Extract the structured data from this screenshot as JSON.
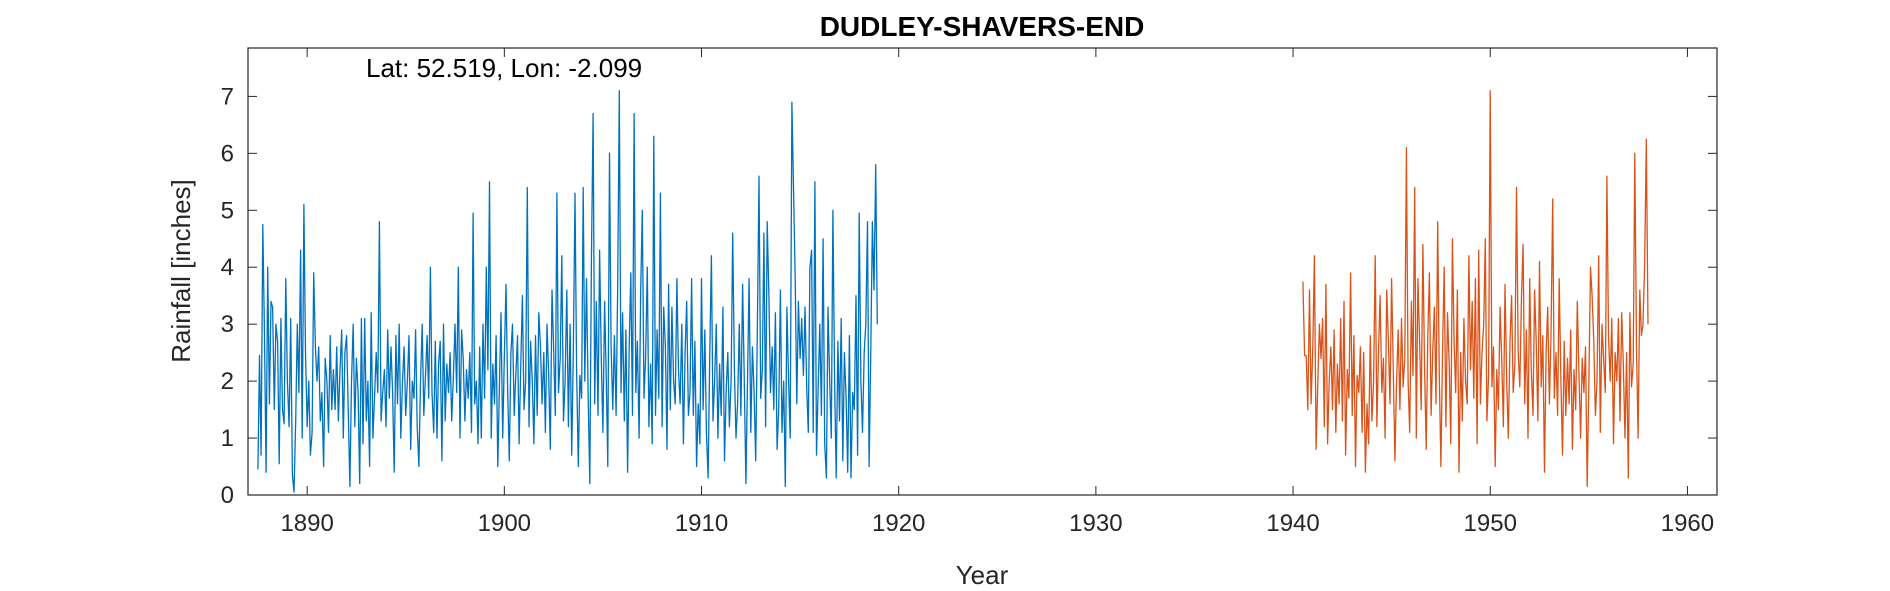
{
  "chart_data": {
    "type": "line",
    "title": "DUDLEY-SHAVERS-END",
    "annotation": "Lat: 52.519, Lon: -2.099",
    "xlabel": "Year",
    "ylabel": "Rainfall [inches]",
    "xlim": [
      1887,
      1961.5
    ],
    "ylim": [
      0,
      7.85
    ],
    "xticks": [
      1890,
      1900,
      1910,
      1920,
      1930,
      1940,
      1950,
      1960
    ],
    "yticks": [
      0,
      1,
      2,
      3,
      4,
      5,
      6,
      7
    ],
    "grid": false,
    "legend": "none",
    "series": [
      {
        "color": "#0072BD",
        "x_start": 1887.5,
        "step": 0.08333,
        "values": [
          0.45,
          2.45,
          0.7,
          4.75,
          2.9,
          0.4,
          4.0,
          1.6,
          3.4,
          3.3,
          1.5,
          3.0,
          2.7,
          0.55,
          3.1,
          1.5,
          1.25,
          3.8,
          2.0,
          1.2,
          3.1,
          0.35,
          0.05,
          1.3,
          3.0,
          1.8,
          4.3,
          1.0,
          5.1,
          2.5,
          1.2,
          2.0,
          0.7,
          1.1,
          3.9,
          2.6,
          2.0,
          2.6,
          1.3,
          1.8,
          0.5,
          2.4,
          2.0,
          1.1,
          2.8,
          1.5,
          2.2,
          1.5,
          2.6,
          1.3,
          2.2,
          2.9,
          1.0,
          2.5,
          2.8,
          1.5,
          0.15,
          2.0,
          3.0,
          1.2,
          2.4,
          1.8,
          0.2,
          3.1,
          0.9,
          3.1,
          1.3,
          2.0,
          0.5,
          3.2,
          1.0,
          1.7,
          2.5,
          1.8,
          4.8,
          1.3,
          1.8,
          2.2,
          1.2,
          2.9,
          1.7,
          2.6,
          1.8,
          0.4,
          2.8,
          1.6,
          3.0,
          1.0,
          2.0,
          2.6,
          1.4,
          2.0,
          2.8,
          0.8,
          2.0,
          1.7,
          2.9,
          1.2,
          0.5,
          2.0,
          3.0,
          1.4,
          2.1,
          2.8,
          1.7,
          4.0,
          1.8,
          1.1,
          2.7,
          1.0,
          2.3,
          2.7,
          0.6,
          3.0,
          1.3,
          2.3,
          1.8,
          2.5,
          1.3,
          2.1,
          3.0,
          1.8,
          4.0,
          1.0,
          2.9,
          2.4,
          1.3,
          2.2,
          1.7,
          2.5,
          1.1,
          4.95,
          1.6,
          2.0,
          0.9,
          2.6,
          1.0,
          3.0,
          1.7,
          4.0,
          2.2,
          5.5,
          1.0,
          2.3,
          1.6,
          2.8,
          0.5,
          1.9,
          3.2,
          1.0,
          2.4,
          3.7,
          1.9,
          0.6,
          2.5,
          3.0,
          1.4,
          2.1,
          2.8,
          0.9,
          2.3,
          3.5,
          1.5,
          2.0,
          5.4,
          1.2,
          2.7,
          2.0,
          0.9,
          2.8,
          1.4,
          3.2,
          2.6,
          1.6,
          2.5,
          1.1,
          3.0,
          2.1,
          0.8,
          3.6,
          2.6,
          1.4,
          5.3,
          1.8,
          2.4,
          4.2,
          1.3,
          2.0,
          3.6,
          1.2,
          3.0,
          0.7,
          2.5,
          5.3,
          2.2,
          0.5,
          2.1,
          1.7,
          5.4,
          2.0,
          3.8,
          1.8,
          0.2,
          4.1,
          6.7,
          1.6,
          3.4,
          1.4,
          4.3,
          2.4,
          1.1,
          3.4,
          2.1,
          0.5,
          6.0,
          2.6,
          1.5,
          2.8,
          1.4,
          3.7,
          7.1,
          1.8,
          3.2,
          1.3,
          2.9,
          0.4,
          2.6,
          3.9,
          1.4,
          6.7,
          1.8,
          2.7,
          1.0,
          3.6,
          5.0,
          1.7,
          2.4,
          4.0,
          1.2,
          2.3,
          0.9,
          6.3,
          1.4,
          2.9,
          1.7,
          5.3,
          1.2,
          3.3,
          2.6,
          0.8,
          3.7,
          1.5,
          3.3,
          2.0,
          1.6,
          3.8,
          2.2,
          1.6,
          3.0,
          0.9,
          2.5,
          3.4,
          1.4,
          1.8,
          3.8,
          1.4,
          2.7,
          0.5,
          1.6,
          0.9,
          3.8,
          1.5,
          2.9,
          1.1,
          0.3,
          2.4,
          4.2,
          1.3,
          2.0,
          3.0,
          1.0,
          2.3,
          1.4,
          3.3,
          0.6,
          1.8,
          2.5,
          1.2,
          2.0,
          4.6,
          2.2,
          1.0,
          1.6,
          3.0,
          1.4,
          3.7,
          2.1,
          0.2,
          2.0,
          3.8,
          1.1,
          2.6,
          1.8,
          0.6,
          3.0,
          5.6,
          1.7,
          2.2,
          4.6,
          1.2,
          4.8,
          3.5,
          1.8,
          2.6,
          1.5,
          3.2,
          0.8,
          1.5,
          3.6,
          1.1,
          2.0,
          0.15,
          3.3,
          2.0,
          1.0,
          6.9,
          5.4,
          3.8,
          1.6,
          3.4,
          2.4,
          3.1,
          2.1,
          3.3,
          1.9,
          1.1,
          4.0,
          4.3,
          1.1,
          5.5,
          0.7,
          1.9,
          3.0,
          1.4,
          4.5,
          0.9,
          0.3,
          3.3,
          2.0,
          1.0,
          5.0,
          2.0,
          0.3,
          2.7,
          1.3,
          3.1,
          0.6,
          2.5,
          1.7,
          0.4,
          2.8,
          0.3,
          1.8,
          1.5,
          3.5,
          0.7,
          4.95,
          2.0,
          1.1,
          2.5,
          3.0,
          4.8,
          0.5,
          2.4,
          4.8,
          3.6,
          5.8,
          3.0
        ]
      },
      {
        "color": "#D95319",
        "x_start": 1940.5,
        "step": 0.08333,
        "values": [
          3.75,
          2.45,
          2.45,
          1.5,
          3.6,
          1.6,
          2.6,
          4.2,
          0.8,
          1.9,
          3.0,
          2.4,
          3.1,
          1.2,
          3.7,
          0.9,
          2.0,
          2.6,
          1.5,
          2.9,
          1.1,
          2.3,
          1.6,
          3.1,
          1.3,
          3.4,
          0.7,
          2.2,
          1.7,
          3.9,
          1.4,
          2.8,
          0.5,
          2.1,
          1.8,
          2.6,
          1.1,
          2.5,
          0.4,
          1.6,
          0.9,
          2.8,
          1.3,
          2.0,
          4.2,
          1.2,
          2.5,
          3.5,
          1.8,
          2.4,
          1.0,
          3.6,
          2.7,
          1.6,
          3.8,
          2.2,
          0.6,
          2.0,
          2.9,
          1.5,
          3.1,
          1.9,
          2.4,
          6.1,
          2.0,
          1.1,
          3.4,
          2.1,
          5.4,
          1.0,
          3.8,
          2.7,
          1.5,
          4.4,
          2.3,
          0.8,
          2.8,
          3.9,
          1.4,
          2.5,
          3.3,
          1.6,
          4.8,
          2.1,
          0.5,
          2.6,
          4.0,
          1.2,
          3.2,
          2.3,
          0.9,
          4.5,
          2.7,
          1.8,
          3.6,
          0.4,
          2.5,
          1.3,
          3.1,
          2.0,
          1.6,
          4.2,
          2.2,
          3.4,
          1.7,
          3.8,
          0.9,
          4.3,
          1.6,
          2.5,
          3.0,
          4.5,
          1.3,
          2.1,
          7.1,
          1.9,
          2.6,
          0.5,
          2.2,
          1.5,
          3.3,
          2.4,
          1.2,
          3.7,
          2.0,
          1.0,
          2.7,
          3.5,
          1.8,
          2.3,
          5.4,
          2.5,
          1.9,
          3.5,
          4.4,
          1.6,
          2.9,
          1.0,
          3.8,
          2.2,
          1.4,
          3.6,
          2.7,
          1.3,
          4.1,
          1.9,
          2.8,
          0.4,
          2.5,
          3.3,
          1.6,
          2.8,
          5.2,
          1.7,
          2.5,
          1.4,
          3.8,
          2.0,
          0.7,
          2.7,
          1.4,
          2.4,
          1.6,
          2.9,
          0.8,
          2.2,
          1.5,
          3.4,
          2.1,
          1.0,
          2.4,
          1.8,
          2.6,
          0.15,
          1.9,
          4.0,
          3.5,
          2.7,
          1.4,
          2.0,
          4.2,
          1.1,
          3.0,
          2.4,
          1.8,
          5.6,
          2.8,
          2.0,
          3.1,
          0.9,
          2.5,
          2.0,
          3.1,
          1.3,
          3.2,
          2.3,
          1.0,
          2.5,
          0.3,
          3.2,
          1.9,
          2.3,
          6.0,
          2.6,
          1.0,
          3.6,
          2.8,
          3.0,
          4.1,
          6.25,
          3.0
        ]
      }
    ]
  }
}
